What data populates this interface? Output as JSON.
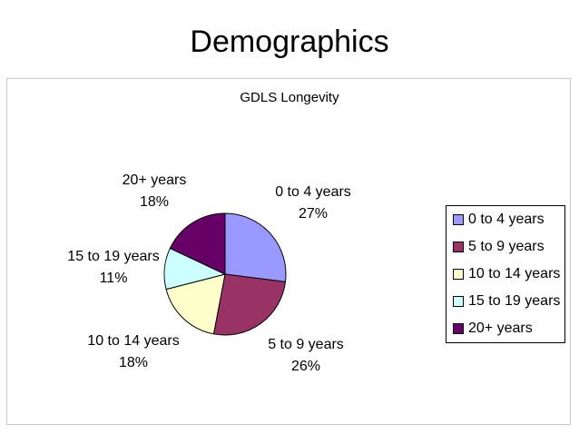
{
  "slide": {
    "title": "Demographics"
  },
  "chart_data": {
    "type": "pie",
    "title": "GDLS Longevity",
    "categories": [
      "0 to 4 years",
      "5 to 9 years",
      "10 to 14 years",
      "15 to 19 years",
      "20+ years"
    ],
    "values": [
      27,
      26,
      18,
      11,
      18
    ],
    "percent_labels": [
      "27%",
      "26%",
      "18%",
      "11%",
      "18%"
    ],
    "colors": [
      "#9999ff",
      "#993366",
      "#ffffcc",
      "#ccffff",
      "#660066"
    ],
    "start_angle_deg": 0,
    "direction": "clockwise",
    "legend_position": "right"
  }
}
